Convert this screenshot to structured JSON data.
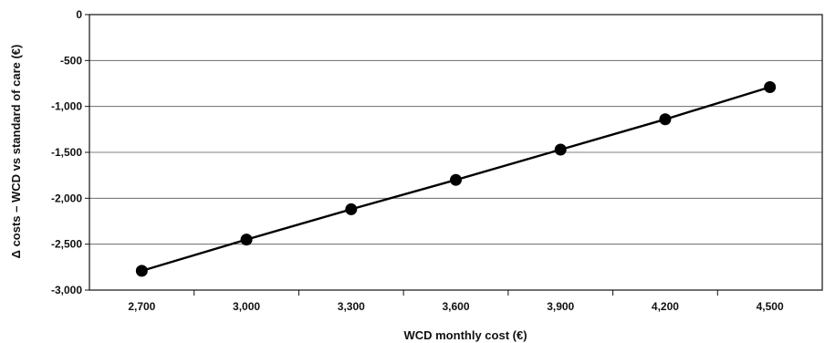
{
  "chart_data": {
    "type": "line",
    "title": "",
    "xlabel": "WCD monthly cost (€)",
    "ylabel": "Δ costs – WCD vs standard of care (€)",
    "x_ticks": [
      "2,700",
      "3,000",
      "3,300",
      "3,600",
      "3,900",
      "4,200",
      "4,500"
    ],
    "y_ticks": [
      "0",
      "-500",
      "-1,000",
      "-1,500",
      "-2,000",
      "-2,500",
      "-3,000"
    ],
    "xlim": [
      2550,
      4650
    ],
    "ylim": [
      -3000,
      0
    ],
    "grid": "horizontal",
    "legend": "none",
    "series": [
      {
        "x": [
          2700,
          3000,
          3300,
          3600,
          3900,
          4200,
          4500
        ],
        "y": [
          -2790,
          -2450,
          -2120,
          -1800,
          -1470,
          -1140,
          -790
        ],
        "color": "#000000",
        "marker": "circle"
      }
    ]
  }
}
